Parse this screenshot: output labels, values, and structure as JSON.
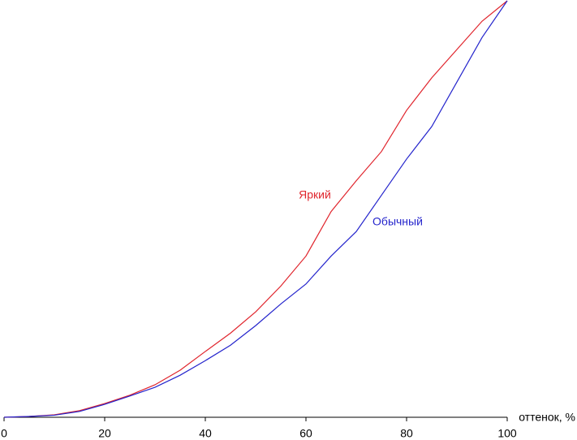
{
  "chart_data": {
    "type": "line",
    "x": [
      0,
      5,
      10,
      15,
      20,
      25,
      30,
      35,
      40,
      45,
      50,
      55,
      60,
      65,
      70,
      75,
      80,
      85,
      90,
      95,
      100
    ],
    "series": [
      {
        "name": "Яркий",
        "color": "#e0242c",
        "values": [
          0,
          0.2,
          0.6,
          1.6,
          3.3,
          5.3,
          7.8,
          11.3,
          15.8,
          20.2,
          25.3,
          31.5,
          38.7,
          49.4,
          56.8,
          63.8,
          73.7,
          81.5,
          88.3,
          95.1,
          100
        ]
      },
      {
        "name": "Обычный",
        "color": "#2424cc",
        "values": [
          0,
          0.2,
          0.5,
          1.4,
          3.1,
          5.1,
          7.2,
          10.1,
          13.6,
          17.3,
          22,
          27.2,
          32,
          38.7,
          44.6,
          53.3,
          62,
          69.8,
          80.5,
          91.2,
          100
        ]
      }
    ],
    "xlabel": "оттенок, %",
    "xlim": [
      0,
      100
    ],
    "xticks": [
      0,
      20,
      40,
      60,
      80,
      100
    ],
    "ylim": [
      0,
      100
    ],
    "axis_color": "#000000"
  }
}
